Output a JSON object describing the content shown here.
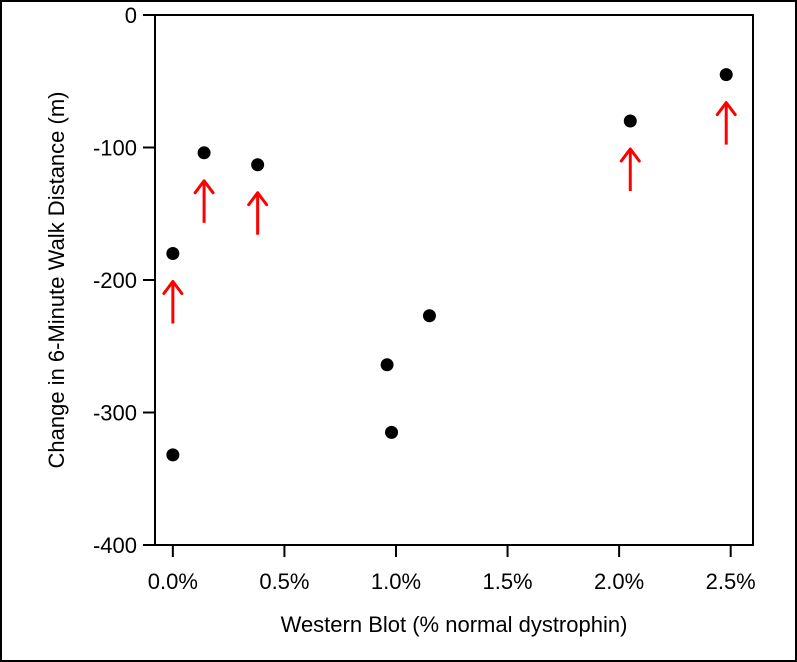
{
  "chart_data": {
    "type": "scatter",
    "title": "",
    "xlabel": "Western Blot (% normal dystrophin)",
    "ylabel": "Change in 6-Minute Walk Distance (m)",
    "xlim": [
      -0.08,
      2.6
    ],
    "ylim": [
      -400,
      0
    ],
    "x_ticks": [
      0.0,
      0.5,
      1.0,
      1.5,
      2.0,
      2.5
    ],
    "x_tick_labels": [
      "0.0%",
      "0.5%",
      "1.0%",
      "1.5%",
      "2.0%",
      "2.5%"
    ],
    "y_ticks": [
      0,
      -100,
      -200,
      -300,
      -400
    ],
    "y_tick_labels": [
      "0",
      "-100",
      "-200",
      "-300",
      "-400"
    ],
    "grid": false,
    "legend": "none",
    "point_color": "#000000",
    "arrow_color": "#ff0000",
    "points": [
      {
        "x": 0.0,
        "y": -180,
        "arrow": true
      },
      {
        "x": 0.0,
        "y": -332,
        "arrow": false
      },
      {
        "x": 0.14,
        "y": -104,
        "arrow": true
      },
      {
        "x": 0.38,
        "y": -113,
        "arrow": true
      },
      {
        "x": 0.96,
        "y": -264,
        "arrow": false
      },
      {
        "x": 0.98,
        "y": -315,
        "arrow": false
      },
      {
        "x": 1.15,
        "y": -227,
        "arrow": false
      },
      {
        "x": 2.05,
        "y": -80,
        "arrow": true
      },
      {
        "x": 2.48,
        "y": -45,
        "arrow": true
      }
    ]
  }
}
